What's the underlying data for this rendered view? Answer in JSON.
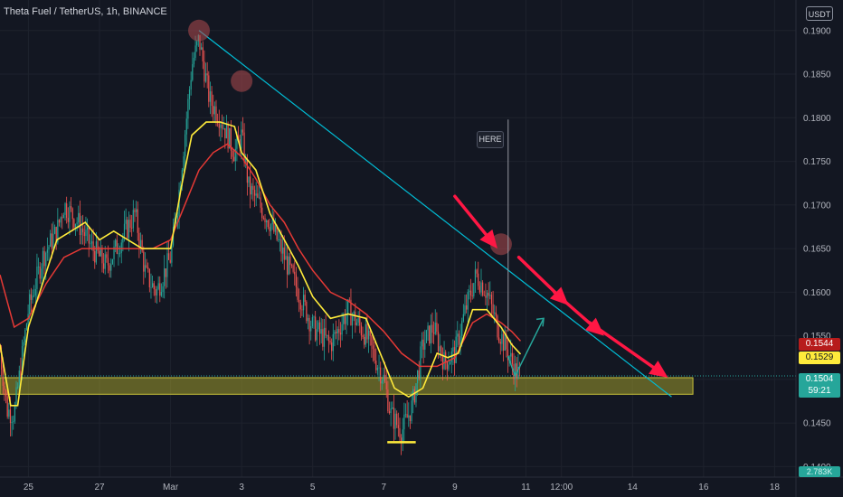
{
  "header": {
    "symbol_title": "Theta Fuel / TetherUS, 1h, BINANCE",
    "currency": "USDT"
  },
  "price_tags": {
    "ma_red": "0.1544",
    "ma_yellow": "0.1529",
    "last_price": "0.1504",
    "countdown": "59:21",
    "volume": "2.783K"
  },
  "annotation": {
    "here_label": "HERE"
  },
  "colors": {
    "background": "#131722",
    "up_candle": "#26a69a",
    "down_candle": "#ef5350",
    "ma_fast": "#ffeb3b",
    "ma_slow": "#e53935",
    "trendline": "#00bcd4",
    "arrows": "#ff1744",
    "support_zone": "#9e9a2b",
    "projection_arrow": "#26a69a",
    "pivot_marker": "#b04a4f"
  },
  "chart_data": {
    "type": "candlestick",
    "title": "Theta Fuel / TetherUS, 1h, BINANCE",
    "y_ticks": [
      "0.1900",
      "0.1850",
      "0.1800",
      "0.1750",
      "0.1700",
      "0.1650",
      "0.1600",
      "0.1550",
      "0.1500",
      "0.1450",
      "0.1400"
    ],
    "x_ticks": [
      "25",
      "27",
      "Mar",
      "3",
      "5",
      "7",
      "9",
      "11",
      "12:00",
      "14",
      "16",
      "18"
    ],
    "ylim": [
      0.1388,
      0.1935
    ],
    "x_tick_days": [
      25,
      27,
      29,
      31,
      33,
      35,
      37,
      39,
      40,
      42,
      44,
      46
    ],
    "xlim_days": [
      24.2,
      46.6
    ],
    "last_price": 0.1504,
    "ma_fast_last": 0.1529,
    "ma_slow_last": 0.1544,
    "price_path": [
      [
        24.0,
        0.16
      ],
      [
        24.4,
        0.1465
      ],
      [
        24.6,
        0.146
      ],
      [
        25.0,
        0.158
      ],
      [
        25.4,
        0.164
      ],
      [
        25.8,
        0.167
      ],
      [
        26.0,
        0.17
      ],
      [
        26.4,
        0.168
      ],
      [
        26.8,
        0.165
      ],
      [
        27.2,
        0.163
      ],
      [
        27.6,
        0.166
      ],
      [
        28.0,
        0.169
      ],
      [
        28.3,
        0.162
      ],
      [
        28.6,
        0.16
      ],
      [
        29.0,
        0.164
      ],
      [
        29.2,
        0.17
      ],
      [
        29.4,
        0.178
      ],
      [
        29.6,
        0.186
      ],
      [
        29.8,
        0.189
      ],
      [
        30.1,
        0.182
      ],
      [
        30.4,
        0.18
      ],
      [
        30.8,
        0.176
      ],
      [
        31.0,
        0.178
      ],
      [
        31.2,
        0.172
      ],
      [
        31.5,
        0.17
      ],
      [
        31.8,
        0.168
      ],
      [
        32.2,
        0.164
      ],
      [
        32.6,
        0.16
      ],
      [
        33.0,
        0.156
      ],
      [
        33.5,
        0.154
      ],
      [
        34.0,
        0.158
      ],
      [
        34.5,
        0.155
      ],
      [
        35.0,
        0.15
      ],
      [
        35.2,
        0.146
      ],
      [
        35.5,
        0.144
      ],
      [
        35.8,
        0.147
      ],
      [
        36.1,
        0.154
      ],
      [
        36.4,
        0.156
      ],
      [
        36.7,
        0.152
      ],
      [
        37.0,
        0.153
      ],
      [
        37.3,
        0.158
      ],
      [
        37.6,
        0.162
      ],
      [
        37.9,
        0.16
      ],
      [
        38.2,
        0.156
      ],
      [
        38.5,
        0.153
      ],
      [
        38.7,
        0.151
      ],
      [
        38.85,
        0.1504
      ]
    ],
    "ma_fast": [
      [
        24.2,
        0.154
      ],
      [
        24.5,
        0.147
      ],
      [
        24.7,
        0.147
      ],
      [
        25.0,
        0.156
      ],
      [
        25.4,
        0.161
      ],
      [
        25.8,
        0.166
      ],
      [
        26.2,
        0.167
      ],
      [
        26.6,
        0.168
      ],
      [
        27.0,
        0.166
      ],
      [
        27.4,
        0.167
      ],
      [
        27.8,
        0.166
      ],
      [
        28.2,
        0.165
      ],
      [
        28.6,
        0.165
      ],
      [
        29.0,
        0.165
      ],
      [
        29.3,
        0.172
      ],
      [
        29.6,
        0.178
      ],
      [
        30.0,
        0.1795
      ],
      [
        30.4,
        0.1795
      ],
      [
        30.8,
        0.179
      ],
      [
        31.0,
        0.176
      ],
      [
        31.4,
        0.174
      ],
      [
        31.8,
        0.169
      ],
      [
        32.2,
        0.166
      ],
      [
        32.6,
        0.163
      ],
      [
        33.0,
        0.1595
      ],
      [
        33.5,
        0.157
      ],
      [
        34.0,
        0.1575
      ],
      [
        34.5,
        0.157
      ],
      [
        35.0,
        0.152
      ],
      [
        35.3,
        0.149
      ],
      [
        35.7,
        0.148
      ],
      [
        36.1,
        0.149
      ],
      [
        36.5,
        0.153
      ],
      [
        36.8,
        0.1525
      ],
      [
        37.1,
        0.153
      ],
      [
        37.5,
        0.158
      ],
      [
        37.9,
        0.158
      ],
      [
        38.3,
        0.156
      ],
      [
        38.6,
        0.154
      ],
      [
        38.85,
        0.1529
      ]
    ],
    "ma_slow": [
      [
        24.2,
        0.162
      ],
      [
        24.6,
        0.156
      ],
      [
        25.0,
        0.157
      ],
      [
        25.5,
        0.161
      ],
      [
        26.0,
        0.164
      ],
      [
        26.5,
        0.165
      ],
      [
        27.0,
        0.165
      ],
      [
        27.5,
        0.165
      ],
      [
        28.0,
        0.165
      ],
      [
        28.5,
        0.165
      ],
      [
        29.0,
        0.166
      ],
      [
        29.4,
        0.17
      ],
      [
        29.8,
        0.174
      ],
      [
        30.2,
        0.176
      ],
      [
        30.6,
        0.177
      ],
      [
        31.0,
        0.1755
      ],
      [
        31.4,
        0.173
      ],
      [
        31.8,
        0.17
      ],
      [
        32.2,
        0.168
      ],
      [
        32.6,
        0.165
      ],
      [
        33.0,
        0.1625
      ],
      [
        33.5,
        0.16
      ],
      [
        34.0,
        0.159
      ],
      [
        34.5,
        0.1575
      ],
      [
        35.0,
        0.1555
      ],
      [
        35.5,
        0.153
      ],
      [
        36.0,
        0.1515
      ],
      [
        36.5,
        0.1515
      ],
      [
        37.0,
        0.1525
      ],
      [
        37.5,
        0.1565
      ],
      [
        37.9,
        0.1575
      ],
      [
        38.3,
        0.1565
      ],
      [
        38.6,
        0.1555
      ],
      [
        38.85,
        0.1544
      ]
    ],
    "trendline": [
      [
        29.8,
        0.19
      ],
      [
        43.1,
        0.148
      ]
    ],
    "support_zone": {
      "x": [
        24.2,
        43.7
      ],
      "y": [
        0.1483,
        0.1502
      ]
    },
    "pivot_markers": [
      [
        29.8,
        0.19
      ],
      [
        31.0,
        0.1842
      ],
      [
        38.3,
        0.1655
      ]
    ],
    "here_line": {
      "x": 38.5,
      "y_top": 0.1798,
      "y_bottom": 0.1555
    },
    "low_marker": {
      "x": [
        35.1,
        35.9
      ],
      "y": 0.1428
    },
    "projection_arrow": [
      [
        38.9,
        0.1504
      ],
      [
        39.5,
        0.157
      ]
    ],
    "red_arrows": [
      [
        [
          37.0,
          0.171
        ],
        [
          38.2,
          0.165
        ]
      ],
      [
        [
          38.8,
          0.164
        ],
        [
          40.2,
          0.1585
        ]
      ],
      [
        [
          39.8,
          0.16
        ],
        [
          41.2,
          0.155
        ]
      ],
      [
        [
          40.8,
          0.1565
        ],
        [
          43.0,
          0.1502
        ]
      ]
    ]
  }
}
